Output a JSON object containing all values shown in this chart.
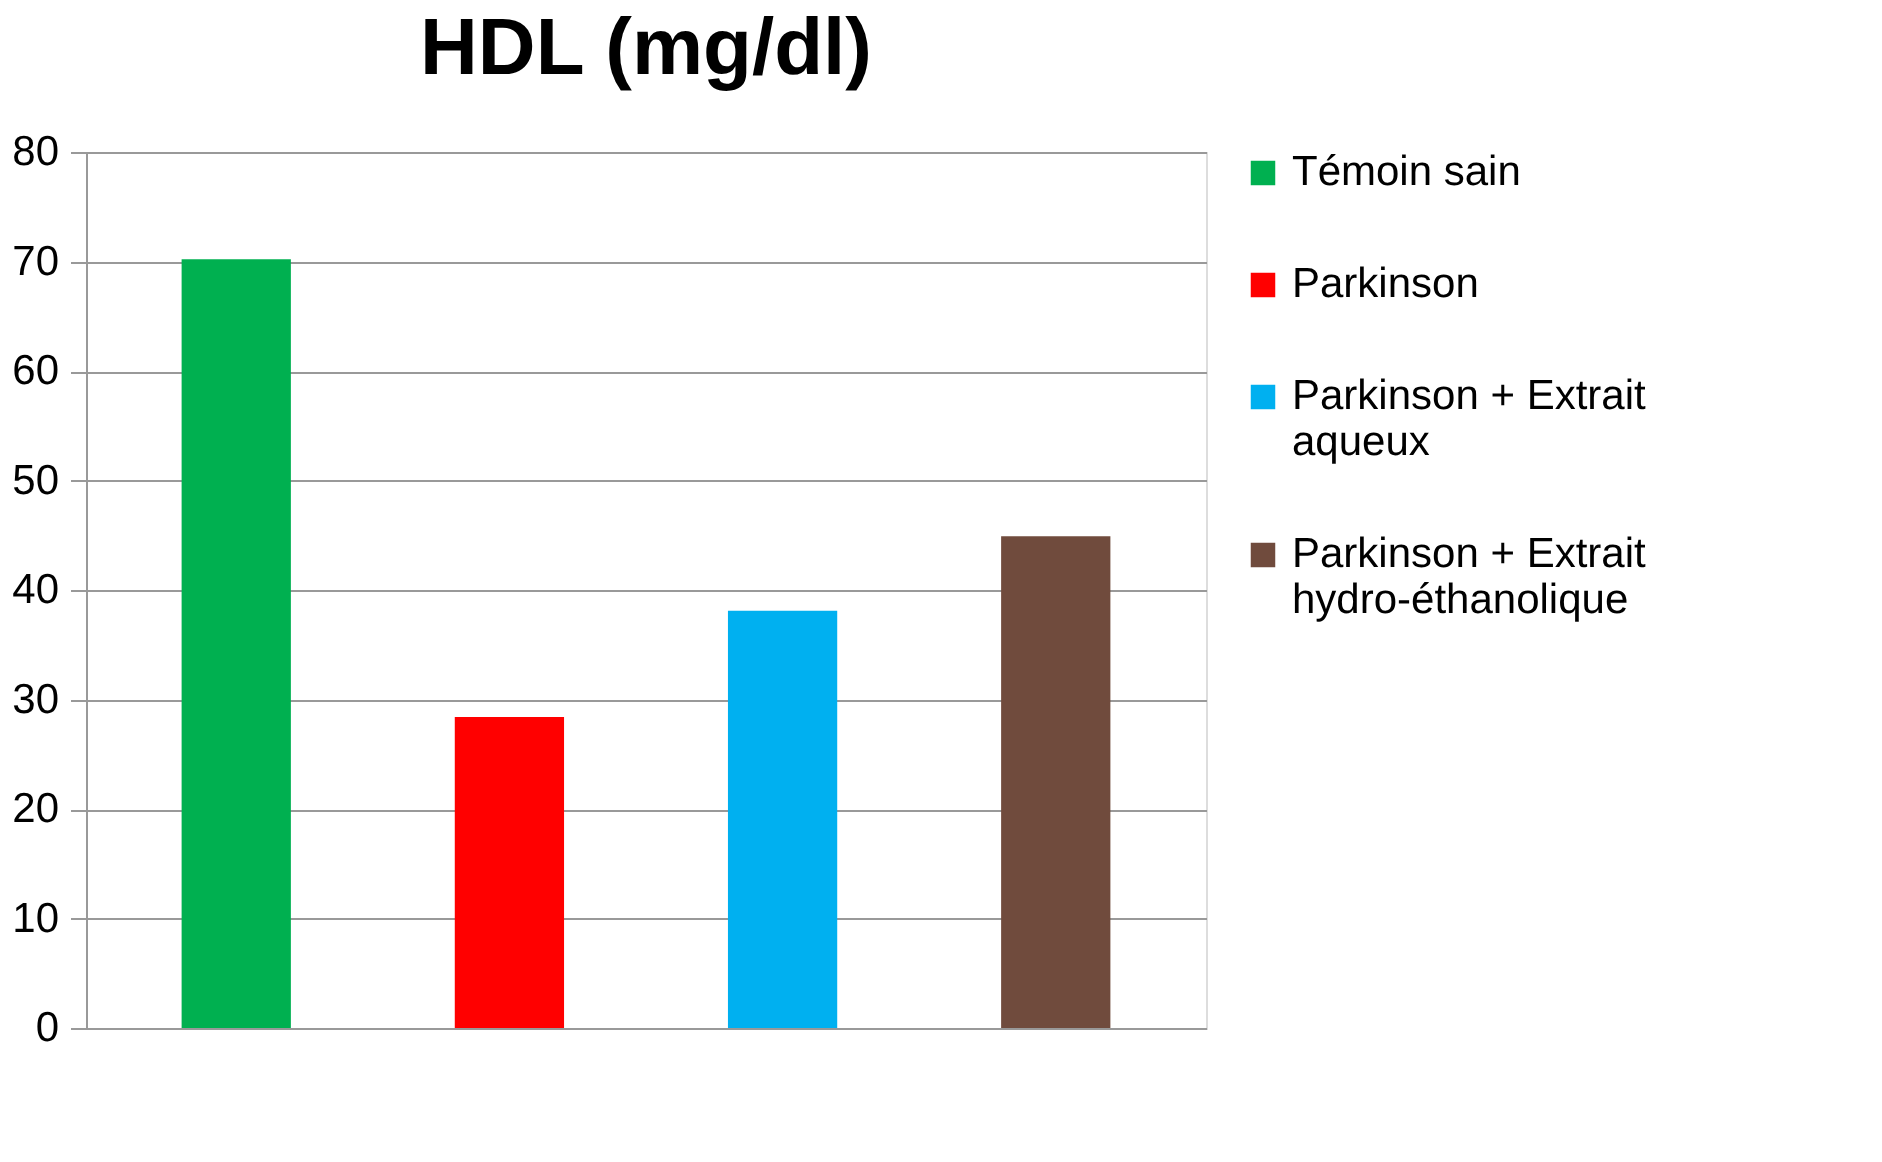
{
  "chart_data": {
    "type": "bar",
    "title": "HDL (mg/dl)",
    "categories": [
      null
    ],
    "series": [
      {
        "name": "Témoin sain",
        "color": "#00b050",
        "values": [
          70.2
        ]
      },
      {
        "name": "Parkinson",
        "color": "#ff0000",
        "values": [
          28.4
        ]
      },
      {
        "name": "Parkinson + Extrait aqueux",
        "color": "#00b0f0",
        "values": [
          38.1
        ]
      },
      {
        "name": "Parkinson + Extrait hydro-éthanolique",
        "color": "#704b3d",
        "values": [
          44.9
        ]
      }
    ],
    "ylim": [
      0,
      80
    ],
    "yticks": [
      0,
      10,
      20,
      30,
      40,
      50,
      60,
      70,
      80
    ],
    "grid": "y",
    "legend": "right"
  }
}
